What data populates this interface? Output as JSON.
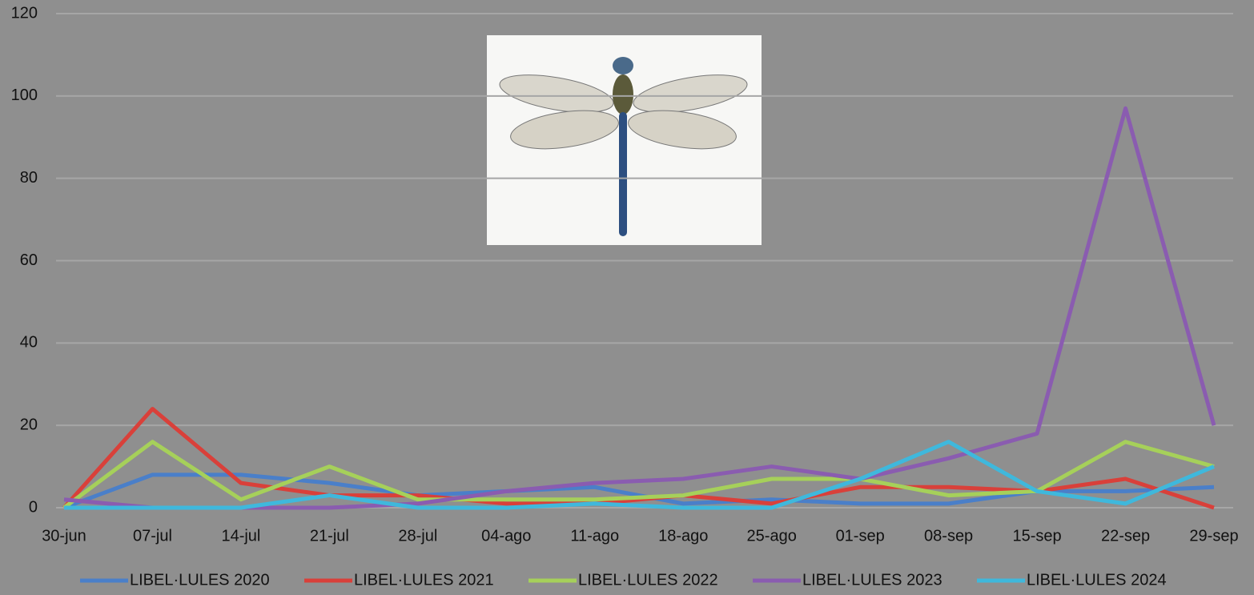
{
  "chart_data": {
    "type": "line",
    "categories": [
      "30-jun",
      "07-jul",
      "14-jul",
      "21-jul",
      "28-jul",
      "04-ago",
      "11-ago",
      "18-ago",
      "25-ago",
      "01-sep",
      "08-sep",
      "15-sep",
      "22-sep",
      "29-sep"
    ],
    "series": [
      {
        "name": "LIBEL·LULES 2020",
        "color": "#4a7fc9",
        "values": [
          0,
          8,
          8,
          6,
          3,
          4,
          5,
          1,
          2,
          1,
          1,
          4,
          4,
          5
        ]
      },
      {
        "name": "LIBEL·LULES 2021",
        "color": "#d9403a",
        "values": [
          0,
          24,
          6,
          3,
          3,
          1,
          1,
          3,
          1,
          5,
          5,
          4,
          7,
          0
        ]
      },
      {
        "name": "LIBEL·LULES 2022",
        "color": "#a6d05a",
        "values": [
          0,
          16,
          2,
          10,
          2,
          2,
          2,
          3,
          7,
          7,
          3,
          4,
          16,
          10
        ]
      },
      {
        "name": "LIBEL·LULES 2023",
        "color": "#8a5cb0",
        "values": [
          2,
          0,
          0,
          0,
          1,
          4,
          6,
          7,
          10,
          7,
          12,
          18,
          97,
          20
        ]
      },
      {
        "name": "LIBEL·LULES 2024",
        "color": "#3fb8dc",
        "values": [
          0,
          0,
          0,
          3,
          0,
          0,
          1,
          0,
          0,
          7,
          16,
          4,
          1,
          10
        ]
      }
    ],
    "ylim": [
      0,
      120
    ],
    "yticks": [
      0,
      20,
      40,
      60,
      80,
      100,
      120
    ],
    "grid": true,
    "legend": "bottom"
  }
}
